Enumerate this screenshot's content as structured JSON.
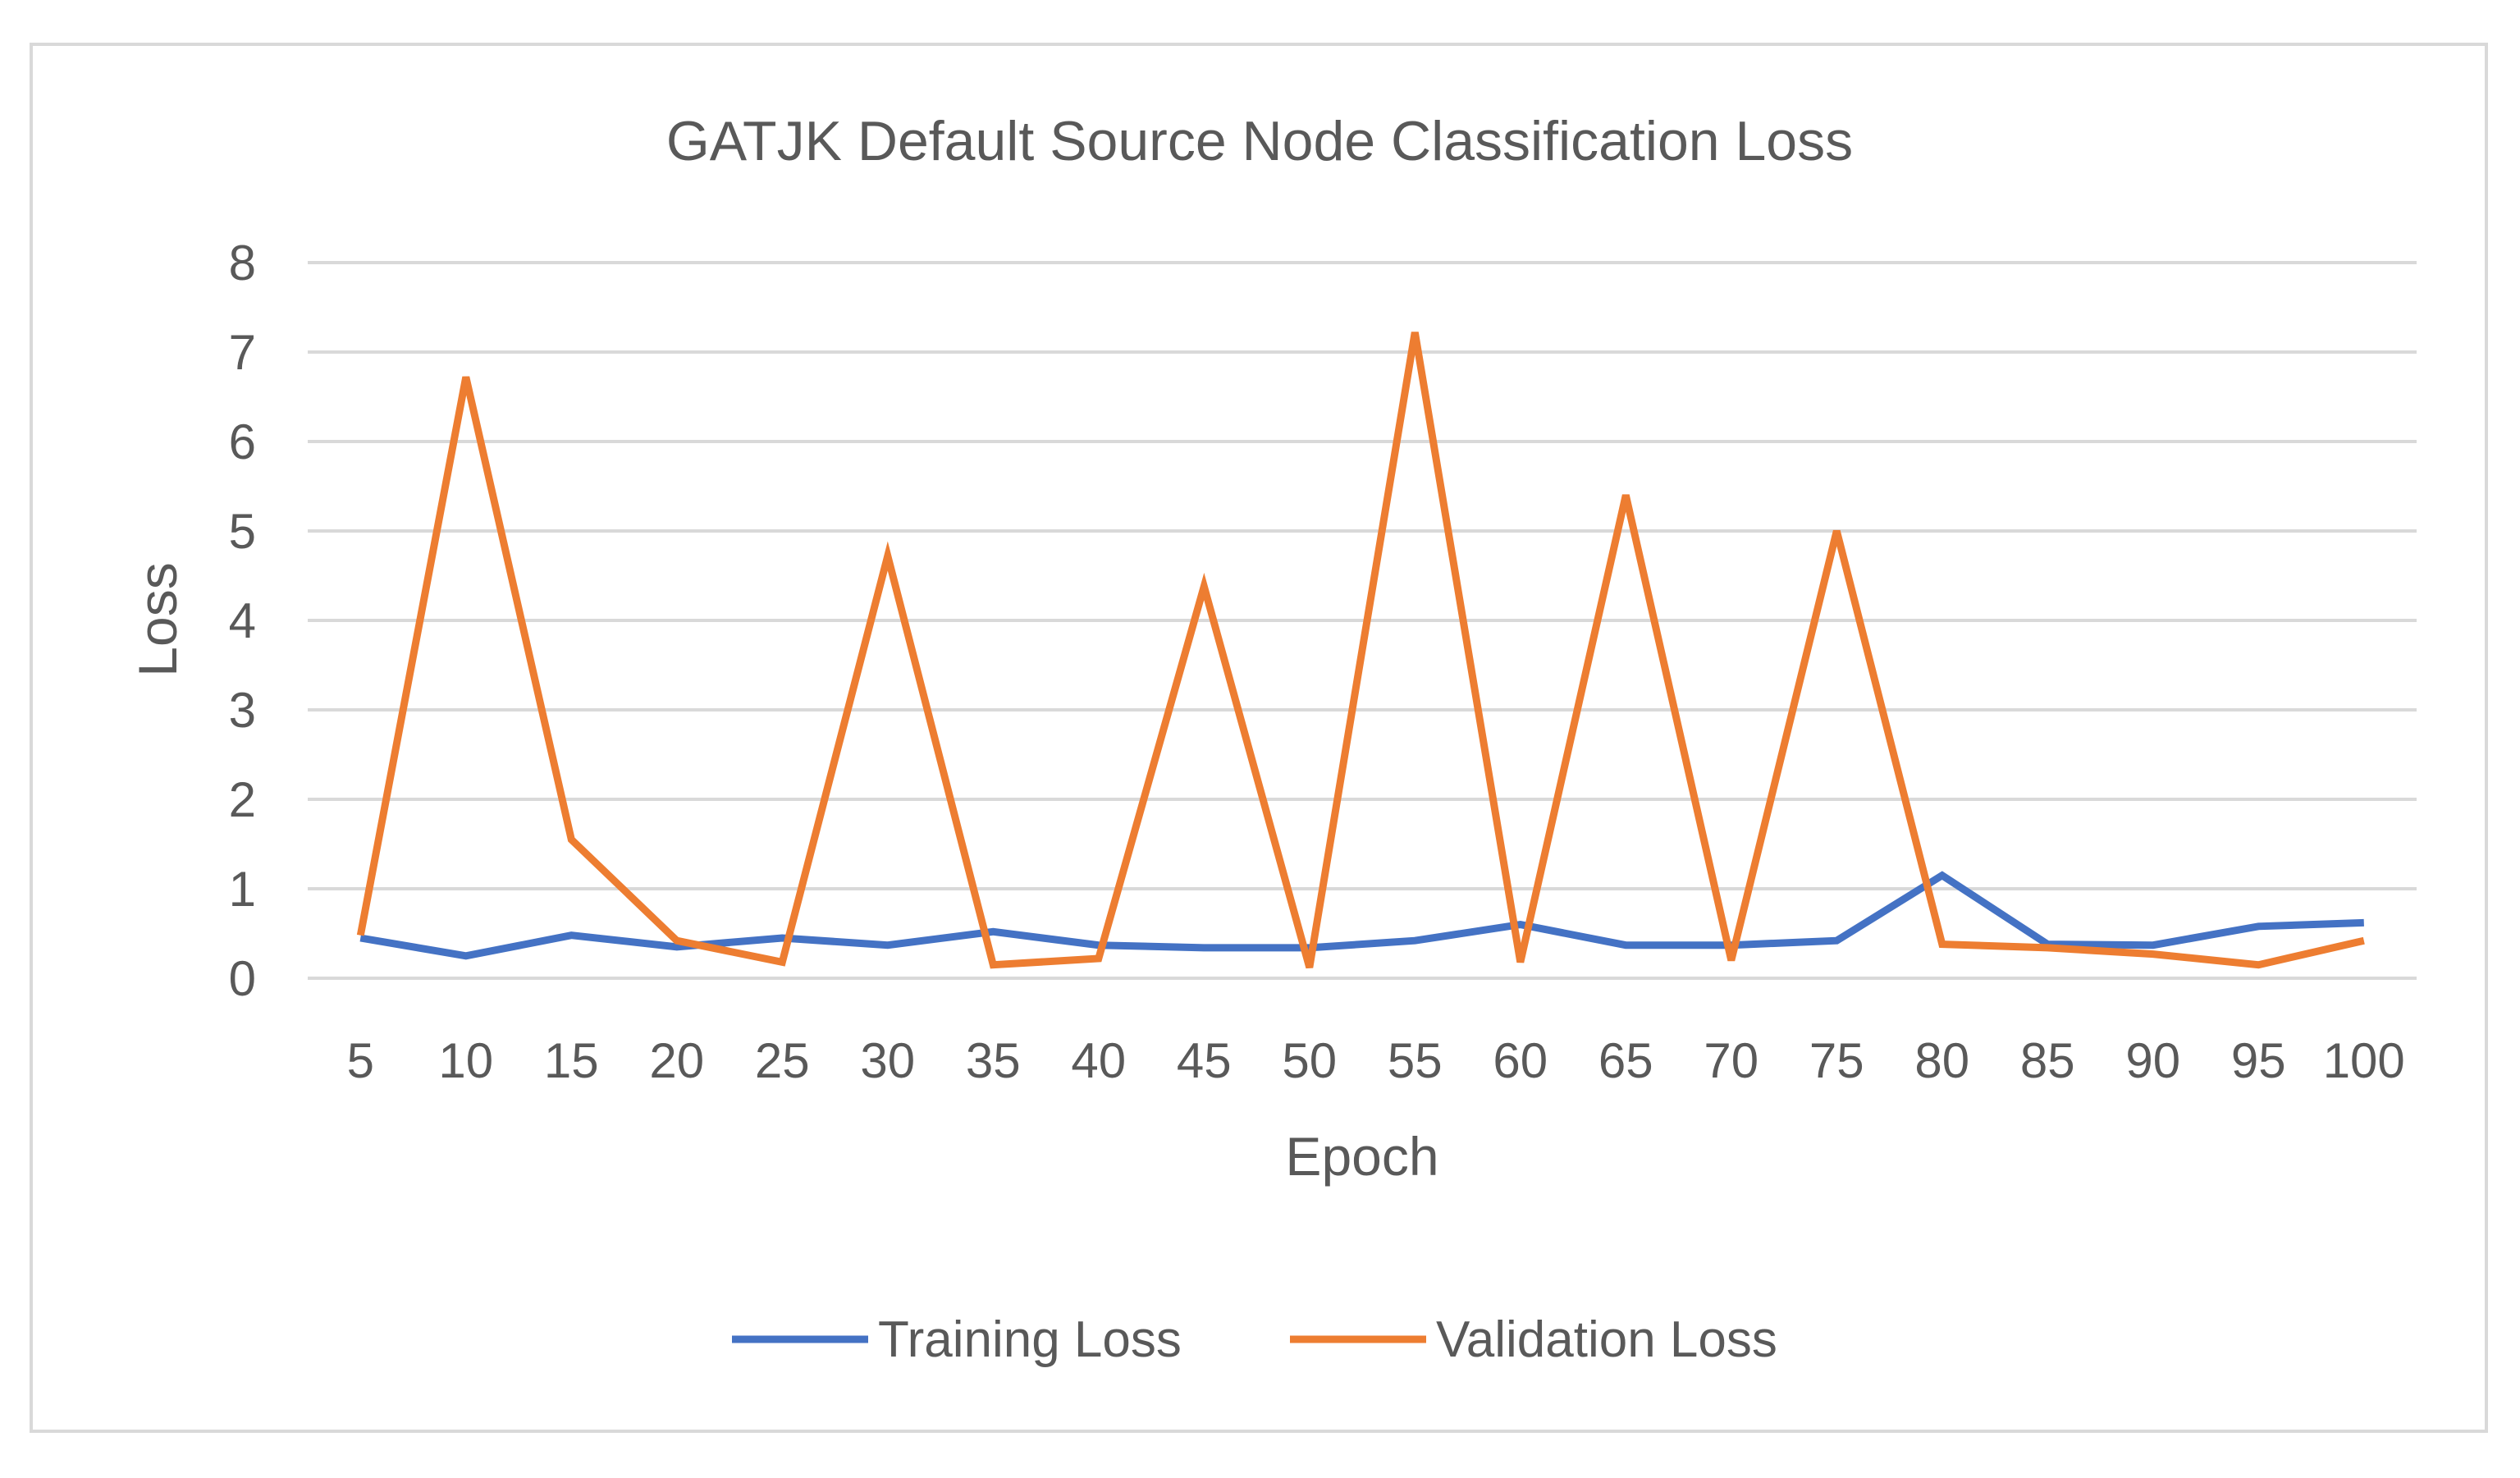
{
  "chart_data": {
    "type": "line",
    "title": "GATJK Default Source Node Classification Loss",
    "xlabel": "Epoch",
    "ylabel": "Loss",
    "ylim": [
      0,
      8
    ],
    "yticks": [
      "0",
      "1",
      "2",
      "3",
      "4",
      "5",
      "6",
      "7",
      "8"
    ],
    "categories": [
      "5",
      "10",
      "15",
      "20",
      "25",
      "30",
      "35",
      "40",
      "45",
      "50",
      "55",
      "60",
      "65",
      "70",
      "75",
      "80",
      "85",
      "90",
      "95",
      "100"
    ],
    "grid": "horizontal",
    "legend_position": "bottom",
    "series": [
      {
        "name": "Training Loss",
        "color": "#4472C4",
        "values": [
          0.45,
          0.25,
          0.48,
          0.35,
          0.45,
          0.37,
          0.52,
          0.37,
          0.34,
          0.34,
          0.42,
          0.6,
          0.37,
          0.37,
          0.42,
          1.15,
          0.38,
          0.37,
          0.58,
          0.62
        ]
      },
      {
        "name": "Validation Loss",
        "color": "#ED7D31",
        "values": [
          0.48,
          6.72,
          1.55,
          0.42,
          0.18,
          4.72,
          0.15,
          0.22,
          4.38,
          0.12,
          7.22,
          0.18,
          5.4,
          0.2,
          5.0,
          0.38,
          0.34,
          0.27,
          0.15,
          0.42
        ]
      }
    ]
  }
}
